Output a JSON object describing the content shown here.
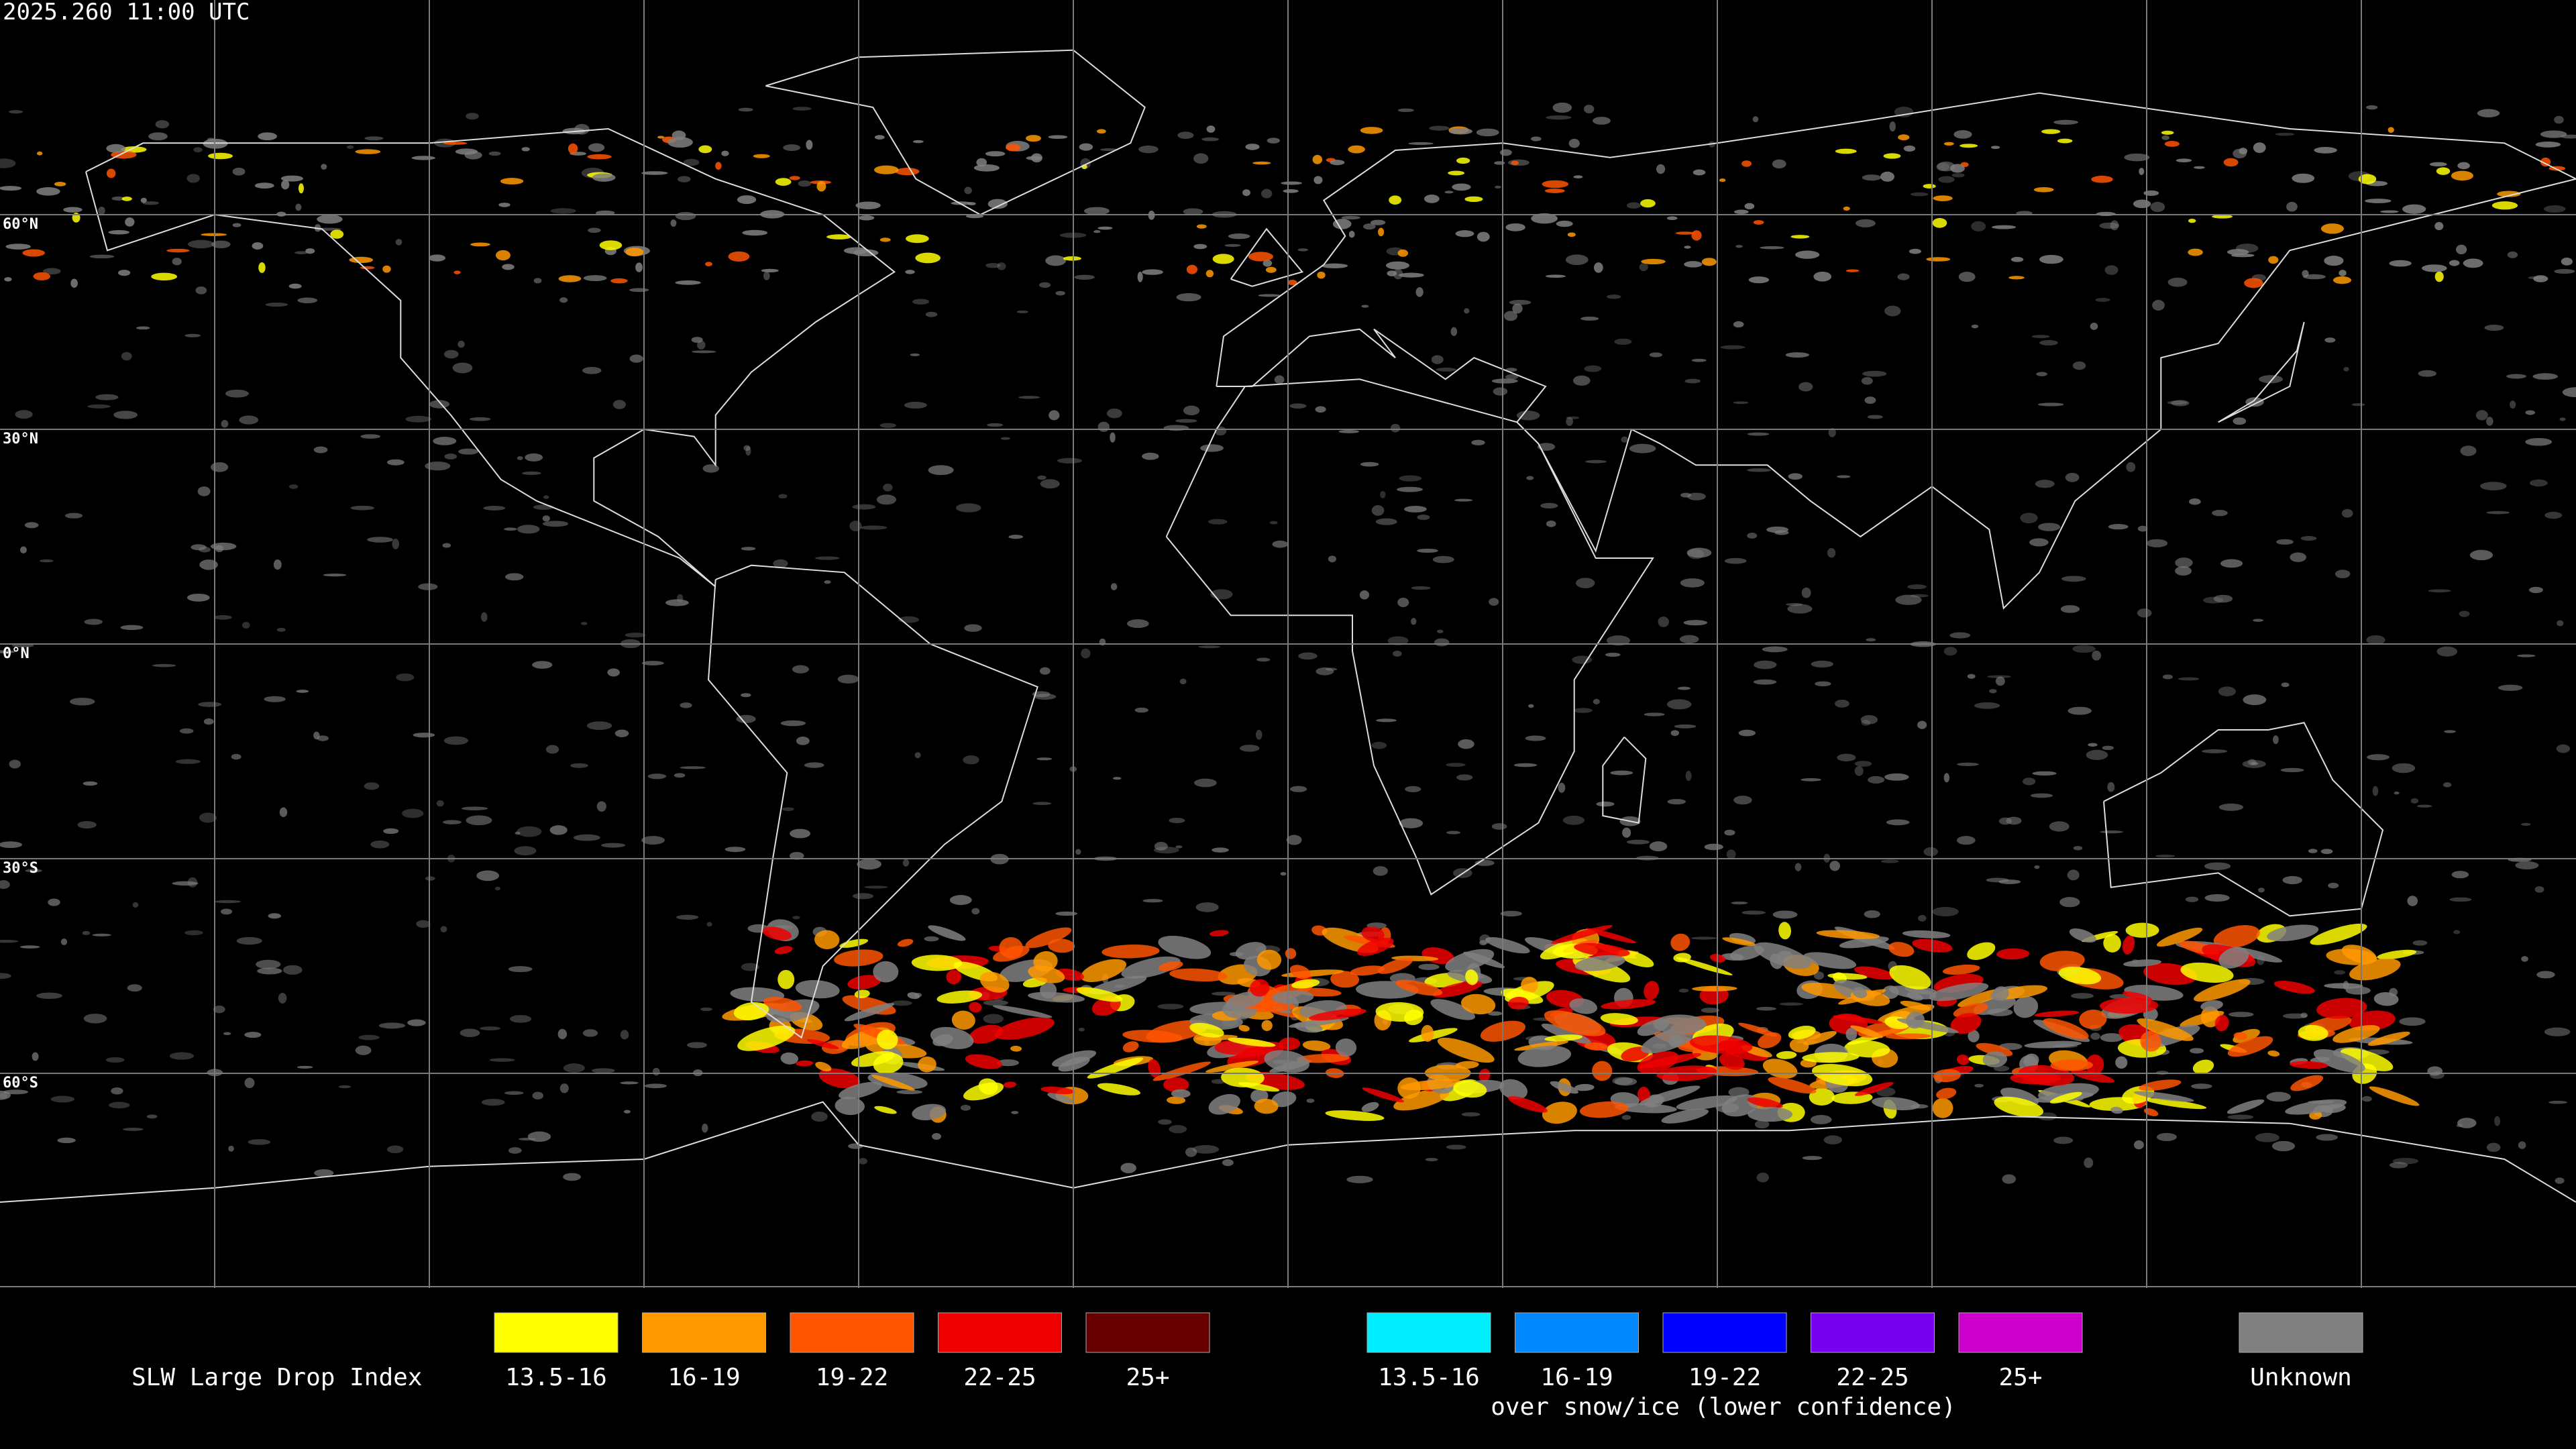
{
  "timestamp": "2025.260 11:00 UTC",
  "latitude_labels": [
    "60°N",
    "30°N",
    "0°N",
    "30°S",
    "60°S"
  ],
  "legend": {
    "title": "SLW Large Drop Index",
    "items": [
      {
        "label": "13.5-16",
        "color": "#ffff00"
      },
      {
        "label": "16-19",
        "color": "#ff9900"
      },
      {
        "label": "19-22",
        "color": "#ff5500"
      },
      {
        "label": "22-25",
        "color": "#ee0000"
      },
      {
        "label": "25+",
        "color": "#660000"
      }
    ],
    "snow_items": [
      {
        "label": "13.5-16",
        "color": "#00eeff"
      },
      {
        "label": "16-19",
        "color": "#0088ff"
      },
      {
        "label": "19-22",
        "color": "#0000ff"
      },
      {
        "label": "22-25",
        "color": "#7700ee"
      },
      {
        "label": "25+",
        "color": "#cc00cc"
      }
    ],
    "snow_note": "over snow/ice (lower confidence)",
    "unknown": {
      "label": "Unknown",
      "color": "#808080"
    }
  }
}
